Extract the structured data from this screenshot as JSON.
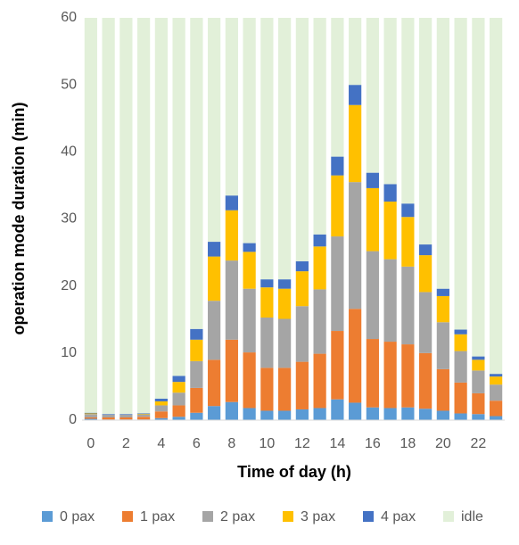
{
  "chart_data": {
    "type": "stacked_bar",
    "x_label": "Time of day  (h)",
    "y_label": "operation mode duration (min)",
    "categories": [
      0,
      null,
      2,
      null,
      4,
      null,
      6,
      null,
      8,
      null,
      10,
      null,
      12,
      null,
      14,
      null,
      16,
      null,
      18,
      null,
      20,
      null,
      22,
      null
    ],
    "series": [
      {
        "name": "0 pax",
        "color": "#5b9bd5",
        "values": [
          0.2,
          0.1,
          0.1,
          0.1,
          0.3,
          0.5,
          1.1,
          2.1,
          2.7,
          1.8,
          1.4,
          1.4,
          1.6,
          1.8,
          3.1,
          2.6,
          1.9,
          1.8,
          1.9,
          1.7,
          1.4,
          1.0,
          0.9,
          0.6
        ]
      },
      {
        "name": "1 pax",
        "color": "#ed7d31",
        "values": [
          0.2,
          0.3,
          0.3,
          0.4,
          1.0,
          1.7,
          3.7,
          6.9,
          9.3,
          8.3,
          6.4,
          6.4,
          7.1,
          8.1,
          10.2,
          14.0,
          10.2,
          9.9,
          9.4,
          8.3,
          6.2,
          4.6,
          3.1,
          2.3
        ]
      },
      {
        "name": "2 pax",
        "color": "#a5a5a5",
        "values": [
          0.5,
          0.4,
          0.4,
          0.3,
          0.9,
          1.9,
          4.0,
          8.8,
          11.8,
          9.5,
          7.5,
          7.3,
          8.3,
          9.6,
          14.1,
          18.9,
          13.1,
          12.3,
          11.6,
          9.1,
          7.0,
          4.7,
          3.4,
          2.4
        ]
      },
      {
        "name": "3 pax",
        "color": "#ffc000",
        "values": [
          0.1,
          0,
          0,
          0.1,
          0.6,
          1.6,
          3.2,
          6.6,
          7.5,
          5.5,
          4.5,
          4.5,
          5.2,
          6.4,
          9.1,
          11.5,
          9.4,
          8.6,
          7.4,
          5.5,
          3.9,
          2.5,
          1.6,
          1.2
        ]
      },
      {
        "name": "4 pax",
        "color": "#4472c4",
        "values": [
          0.1,
          0.1,
          0.1,
          0.1,
          0.4,
          0.9,
          1.6,
          2.2,
          2.2,
          1.3,
          1.2,
          1.4,
          1.5,
          1.8,
          2.8,
          3.0,
          2.3,
          2.6,
          2.0,
          1.6,
          1.1,
          0.7,
          0.5,
          0.4
        ]
      },
      {
        "name": "idle",
        "color": "#e2f0d9",
        "values": [
          58.9,
          59.1,
          59.1,
          59.0,
          56.8,
          53.4,
          46.4,
          33.4,
          26.5,
          33.6,
          39.0,
          39.0,
          36.3,
          32.3,
          20.7,
          10.0,
          23.1,
          24.8,
          27.7,
          33.8,
          40.4,
          46.5,
          50.5,
          53.1
        ]
      }
    ],
    "ylim": [
      0,
      60
    ],
    "yticks": [
      0,
      10,
      20,
      30,
      40,
      50,
      60
    ],
    "grid": false
  }
}
